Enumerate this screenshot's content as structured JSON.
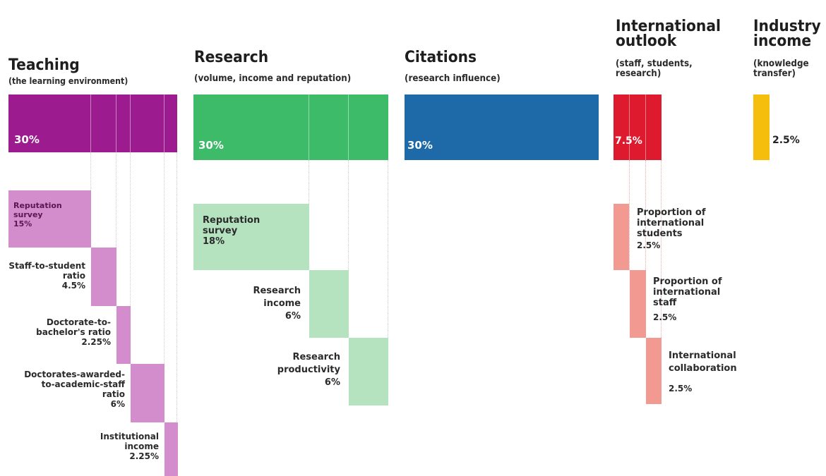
{
  "chart_data": {
    "type": "bar",
    "title": "",
    "pillars": [
      {
        "name": "Teaching",
        "subtitle": "(the learning environment)",
        "weight_label": "30%",
        "weight": 30,
        "color": "#9c1b8e",
        "sub_color": "#d48dcc",
        "components": [
          {
            "name": "Reputation survey",
            "value_label": "15%",
            "value": 15
          },
          {
            "name": "Staff-to-student ratio",
            "value_label": "4.5%",
            "value": 4.5
          },
          {
            "name": "Doctorate-to-bachelor's ratio",
            "value_label": "2.25%",
            "value": 2.25
          },
          {
            "name": "Doctorates-awarded-to-academic-staff ratio",
            "value_label": "6%",
            "value": 6
          },
          {
            "name": "Institutional income",
            "value_label": "2.25%",
            "value": 2.25
          }
        ]
      },
      {
        "name": "Research",
        "subtitle": "(volume, income and reputation)",
        "weight_label": "30%",
        "weight": 30,
        "color": "#3dbb68",
        "sub_color": "#b5e3c0",
        "components": [
          {
            "name": "Reputation survey",
            "value_label": "18%",
            "value": 18
          },
          {
            "name": "Research income",
            "value_label": "6%",
            "value": 6
          },
          {
            "name": "Research productivity",
            "value_label": "6%",
            "value": 6
          }
        ]
      },
      {
        "name": "Citations",
        "subtitle": "(research influence)",
        "weight_label": "30%",
        "weight": 30,
        "color": "#1e6aa9",
        "components": []
      },
      {
        "name": "International outlook",
        "subtitle": "(staff, students, research)",
        "weight_label": "7.5%",
        "weight": 7.5,
        "color": "#de1a2f",
        "sub_color": "#f29a92",
        "components": [
          {
            "name": "Proportion of international students",
            "value_label": "2.5%",
            "value": 2.5
          },
          {
            "name": "Proportion of international staff",
            "value_label": "2.5%",
            "value": 2.5
          },
          {
            "name": "International collaboration",
            "value_label": "2.5%",
            "value": 2.5
          }
        ]
      },
      {
        "name": "Industry income",
        "subtitle": "(knowledge transfer)",
        "weight_label": "2.5%",
        "weight": 2.5,
        "color": "#f6be0c",
        "components": []
      }
    ]
  },
  "text": {
    "teaching": {
      "title": "Teaching",
      "sub": "(the learning environment)",
      "pct": "30%",
      "c1": [
        "Reputation",
        "survey",
        "15%"
      ],
      "c2": [
        "Staff-to-student",
        "ratio",
        "4.5%"
      ],
      "c3": [
        "Doctorate-to-",
        "bachelor's ratio",
        "2.25%"
      ],
      "c4": [
        "Doctorates-awarded-",
        "to-academic-staff",
        "ratio",
        "6%"
      ],
      "c5": [
        "Institutional",
        "income",
        "2.25%"
      ]
    },
    "research": {
      "title": "Research",
      "sub": "(volume, income and reputation)",
      "pct": "30%",
      "c1": [
        "Reputation",
        "survey",
        "18%"
      ],
      "c2": [
        "Research",
        "income",
        "6%"
      ],
      "c3": [
        "Research",
        "productivity",
        "6%"
      ]
    },
    "citations": {
      "title": "Citations",
      "sub": "(research influence)",
      "pct": "30%"
    },
    "international": {
      "title1": "International",
      "title2": "outlook",
      "sub1": "(staff, students,",
      "sub2": "research)",
      "pct": "7.5%",
      "c1": [
        "Proportion of",
        "international",
        "students",
        "2.5%"
      ],
      "c2": [
        "Proportion of",
        "international",
        "staff",
        "2.5%"
      ],
      "c3": [
        "International",
        "collaboration",
        "2.5%"
      ]
    },
    "industry": {
      "title1": "Industry",
      "title2": "income",
      "sub1": "(knowledge",
      "sub2": "transfer)",
      "pct": "2.5%"
    }
  }
}
